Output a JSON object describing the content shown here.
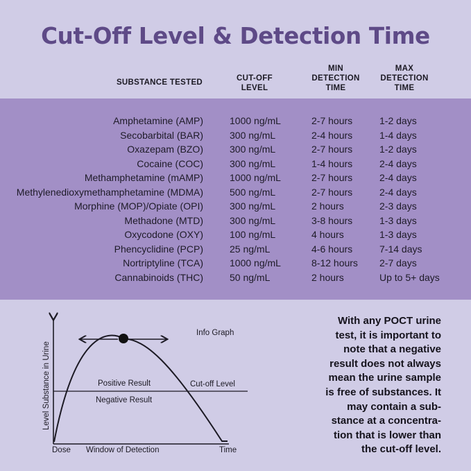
{
  "title": "Cut-Off Level & Detection Time",
  "headers": {
    "substance": "SUBSTANCE TESTED",
    "cutoff_1": "CUT-OFF",
    "cutoff_2": "LEVEL",
    "min_1": "MIN",
    "min_2": "DETECTION",
    "min_3": "TIME",
    "max_1": "MAX",
    "max_2": "DETECTION",
    "max_3": "TIME"
  },
  "rows": [
    {
      "substance": "Amphetamine (AMP)",
      "cutoff": "1000 ng/mL",
      "min": "2-7 hours",
      "max": "1-2 days"
    },
    {
      "substance": "Secobarbital (BAR)",
      "cutoff": "300 ng/mL",
      "min": "2-4 hours",
      "max": "1-4 days"
    },
    {
      "substance": "Oxazepam (BZO)",
      "cutoff": "300 ng/mL",
      "min": "2-7 hours",
      "max": "1-2 days"
    },
    {
      "substance": "Cocaine (COC)",
      "cutoff": "300 ng/mL",
      "min": "1-4 hours",
      "max": "2-4 days"
    },
    {
      "substance": "Methamphetamine (mAMP)",
      "cutoff": "1000 ng/mL",
      "min": "2-7 hours",
      "max": "2-4 days"
    },
    {
      "substance": "Methylenedioxymethamphetamine (MDMA)",
      "cutoff": "500 ng/mL",
      "min": "2-7 hours",
      "max": "2-4 days"
    },
    {
      "substance": "Morphine (MOP)/Opiate (OPI)",
      "cutoff": "300 ng/mL",
      "min": "2 hours",
      "max": "2-3 days"
    },
    {
      "substance": "Methadone (MTD)",
      "cutoff": "300 ng/mL",
      "min": "3-8 hours",
      "max": "1-3 days"
    },
    {
      "substance": "Oxycodone (OXY)",
      "cutoff": "100 ng/mL",
      "min": "4 hours",
      "max": "1-3 days"
    },
    {
      "substance": "Phencyclidine (PCP)",
      "cutoff": "25 ng/mL",
      "min": "4-6 hours",
      "max": "7-14 days"
    },
    {
      "substance": "Nortriptyline (TCA)",
      "cutoff": "1000 ng/mL",
      "min": "8-12 hours",
      "max": "2-7 days"
    },
    {
      "substance": "Cannabinoids (THC)",
      "cutoff": "50 ng/mL",
      "min": "2 hours",
      "max": "Up to 5+ days"
    }
  ],
  "graph": {
    "info_label": "Info Graph",
    "positive_label": "Positive Result",
    "negative_label": "Negative Result",
    "cutoff_label": "Cut-off Level",
    "y_axis_label": "Level Substance in Urine",
    "x_start_label": "Dose",
    "window_label": "Window of Detection",
    "x_end_label": "Time"
  },
  "note_lines": [
    "With any POCT urine",
    "test, it is important to",
    "note that a negative",
    "result does not always",
    "mean the urine sample",
    "is free of substances. It",
    "may contain a sub-",
    "stance at a concentra-",
    "tion that is lower than",
    "the cut-off level."
  ],
  "colors": {
    "background": "#d0cce6",
    "band": "#a28fc6",
    "title": "#5e4a87"
  }
}
